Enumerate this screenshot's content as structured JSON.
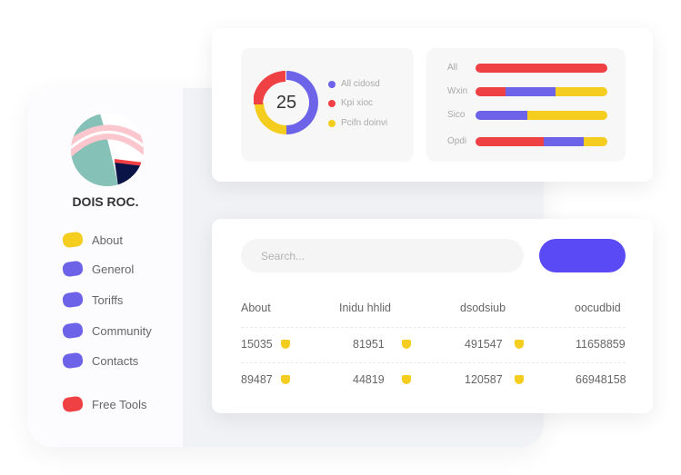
{
  "sidebar": {
    "brand": "DOIS ROC.",
    "items": [
      {
        "label": "About",
        "color": "#f4cd1f"
      },
      {
        "label": "Generol",
        "color": "#6c63e8"
      },
      {
        "label": "Toriffs",
        "color": "#6c63e8"
      },
      {
        "label": "Community",
        "color": "#6c63e8"
      },
      {
        "label": "Contacts",
        "color": "#6c63e8"
      },
      {
        "label": "Free Tools",
        "color": "#ef4044"
      }
    ]
  },
  "donut": {
    "value": "25",
    "legend": [
      {
        "label": "All cidosd",
        "color": "#6c63e8"
      },
      {
        "label": "Kpi xioc",
        "color": "#ef4044"
      },
      {
        "label": "Pcifn doinvi",
        "color": "#f4cd1f"
      }
    ]
  },
  "bars": [
    {
      "label": "All",
      "segments": [
        {
          "pct": 100,
          "color": "#ef4044"
        }
      ]
    },
    {
      "label": "Wxin",
      "segments": [
        {
          "pct": 23,
          "color": "#ef4044"
        },
        {
          "pct": 38,
          "color": "#6c63e8"
        },
        {
          "pct": 39,
          "color": "#f4cd1f"
        }
      ]
    },
    {
      "label": "Sico",
      "segments": [
        {
          "pct": 39,
          "color": "#6c63e8"
        },
        {
          "pct": 61,
          "color": "#f4cd1f"
        }
      ]
    },
    {
      "label": "Opdi",
      "segments": [
        {
          "pct": 52,
          "color": "#ef4044"
        },
        {
          "pct": 30,
          "color": "#6c63e8"
        },
        {
          "pct": 18,
          "color": "#f4cd1f"
        }
      ]
    }
  ],
  "search": {
    "placeholder": "Search..."
  },
  "table": {
    "headers": [
      "About",
      "Inidu hhlid",
      "dsodsiub",
      "oocudbid"
    ],
    "rows": [
      [
        "15035",
        "81951",
        "491547",
        "11658859"
      ],
      [
        "89487",
        "44819",
        "120587",
        "66948158"
      ]
    ]
  }
}
